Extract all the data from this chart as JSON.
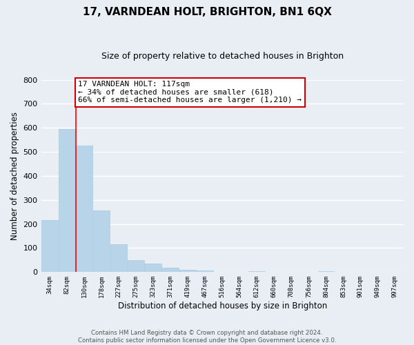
{
  "title": "17, VARNDEAN HOLT, BRIGHTON, BN1 6QX",
  "subtitle": "Size of property relative to detached houses in Brighton",
  "xlabel": "Distribution of detached houses by size in Brighton",
  "ylabel": "Number of detached properties",
  "bar_heights": [
    215,
    596,
    525,
    255,
    117,
    50,
    34,
    18,
    10,
    8,
    0,
    0,
    5,
    0,
    0,
    0,
    4,
    0,
    0,
    0,
    0
  ],
  "x_labels": [
    "34sqm",
    "82sqm",
    "130sqm",
    "178sqm",
    "227sqm",
    "275sqm",
    "323sqm",
    "371sqm",
    "419sqm",
    "467sqm",
    "516sqm",
    "564sqm",
    "612sqm",
    "660sqm",
    "708sqm",
    "756sqm",
    "804sqm",
    "853sqm",
    "901sqm",
    "949sqm",
    "997sqm"
  ],
  "ylim": [
    0,
    800
  ],
  "yticks": [
    0,
    100,
    200,
    300,
    400,
    500,
    600,
    700,
    800
  ],
  "bar_color": "#b8d4e8",
  "bar_edge_color": "#aac8e0",
  "red_line_x": 1.5,
  "annotation_text": "17 VARNDEAN HOLT: 117sqm\n← 34% of detached houses are smaller (618)\n66% of semi-detached houses are larger (1,210) →",
  "annotation_box_facecolor": "#ffffff",
  "annotation_box_edgecolor": "#cc0000",
  "footer_line1": "Contains HM Land Registry data © Crown copyright and database right 2024.",
  "footer_line2": "Contains public sector information licensed under the Open Government Licence v3.0.",
  "background_color": "#e8eef4",
  "grid_color": "#ffffff"
}
